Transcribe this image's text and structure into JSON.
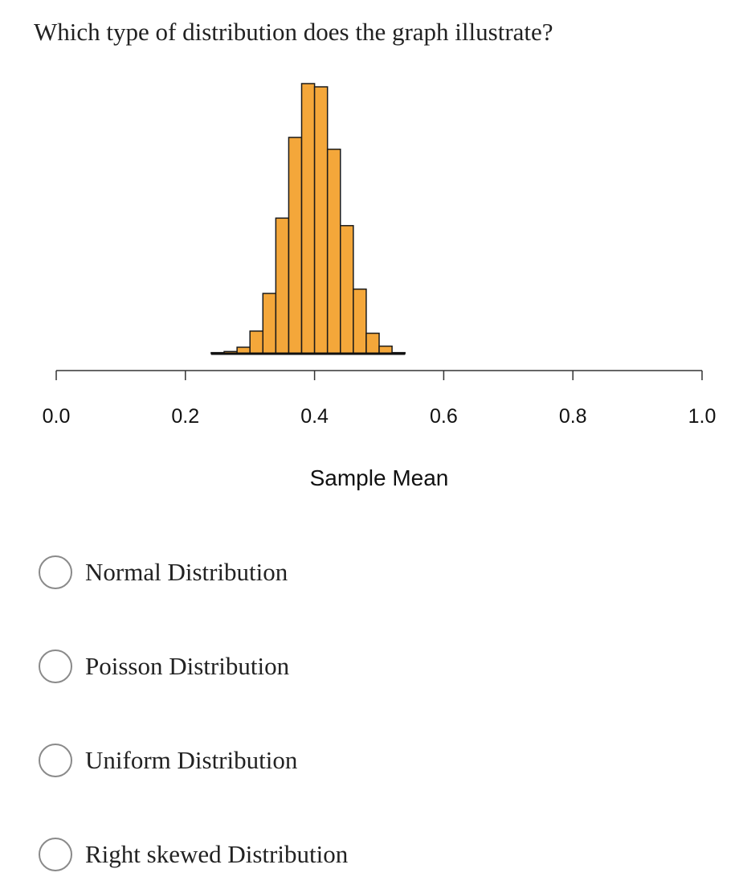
{
  "question": {
    "text": "Which type of distribution does the graph illustrate?"
  },
  "chart_data": {
    "type": "bar",
    "title": "",
    "xlabel": "Sample Mean",
    "ylabel": "",
    "xlim": [
      0.0,
      1.0
    ],
    "x_ticks": [
      "0.0",
      "0.2",
      "0.4",
      "0.6",
      "0.8",
      "1.0"
    ],
    "bin_width": 0.02,
    "bins": [
      {
        "start": 0.24,
        "count": 1
      },
      {
        "start": 0.26,
        "count": 2
      },
      {
        "start": 0.28,
        "count": 6
      },
      {
        "start": 0.3,
        "count": 21
      },
      {
        "start": 0.32,
        "count": 56
      },
      {
        "start": 0.34,
        "count": 126
      },
      {
        "start": 0.36,
        "count": 201
      },
      {
        "start": 0.38,
        "count": 251
      },
      {
        "start": 0.4,
        "count": 248
      },
      {
        "start": 0.42,
        "count": 190
      },
      {
        "start": 0.44,
        "count": 119
      },
      {
        "start": 0.46,
        "count": 60
      },
      {
        "start": 0.48,
        "count": 19
      },
      {
        "start": 0.5,
        "count": 7
      },
      {
        "start": 0.52,
        "count": 1
      }
    ],
    "bar_color": "#F4A73A",
    "edge_color": "#1a1a1a",
    "grid": false
  },
  "options": [
    {
      "label": "Normal Distribution"
    },
    {
      "label": "Poisson Distribution"
    },
    {
      "label": "Uniform Distribution"
    },
    {
      "label": "Right skewed Distribution"
    }
  ]
}
